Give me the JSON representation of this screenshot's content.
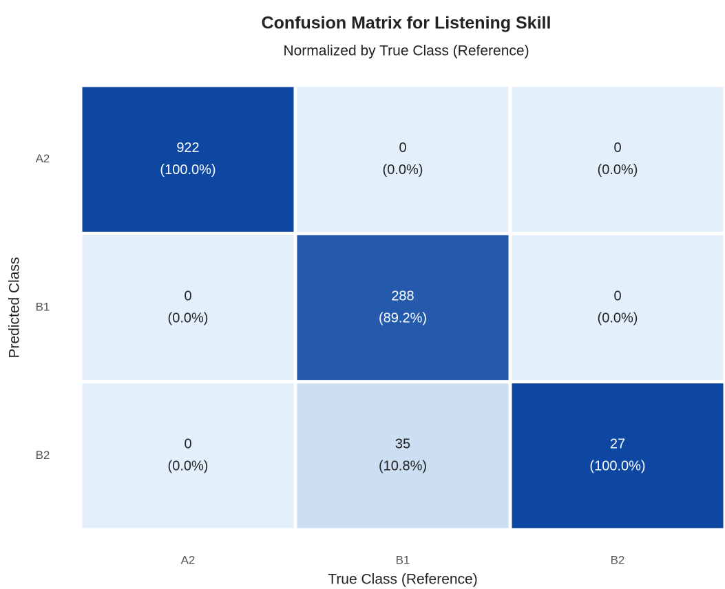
{
  "chart_data": {
    "type": "heatmap",
    "title": "Confusion Matrix for Listening Skill",
    "subtitle": "Normalized by True Class (Reference)",
    "x_label": "True Class (Reference)",
    "y_label": "Predicted Class",
    "x_categories": [
      "A2",
      "B1",
      "B2"
    ],
    "y_categories": [
      "A2",
      "B1",
      "B2"
    ],
    "values": [
      [
        922,
        0,
        0
      ],
      [
        0,
        288,
        0
      ],
      [
        0,
        35,
        27
      ]
    ],
    "percentages": [
      [
        100.0,
        0.0,
        0.0
      ],
      [
        0.0,
        89.2,
        0.0
      ],
      [
        0.0,
        10.8,
        100.0
      ]
    ],
    "percentage_labels": [
      [
        "(100.0%)",
        "(0.0%)",
        "(0.0%)"
      ],
      [
        "(0.0%)",
        "(89.2%)",
        "(0.0%)"
      ],
      [
        "(0.0%)",
        "(10.8%)",
        "(100.0%)"
      ]
    ],
    "clim": [
      0,
      100
    ],
    "colors": [
      "#e3f0fb",
      "#0d47a1"
    ]
  }
}
